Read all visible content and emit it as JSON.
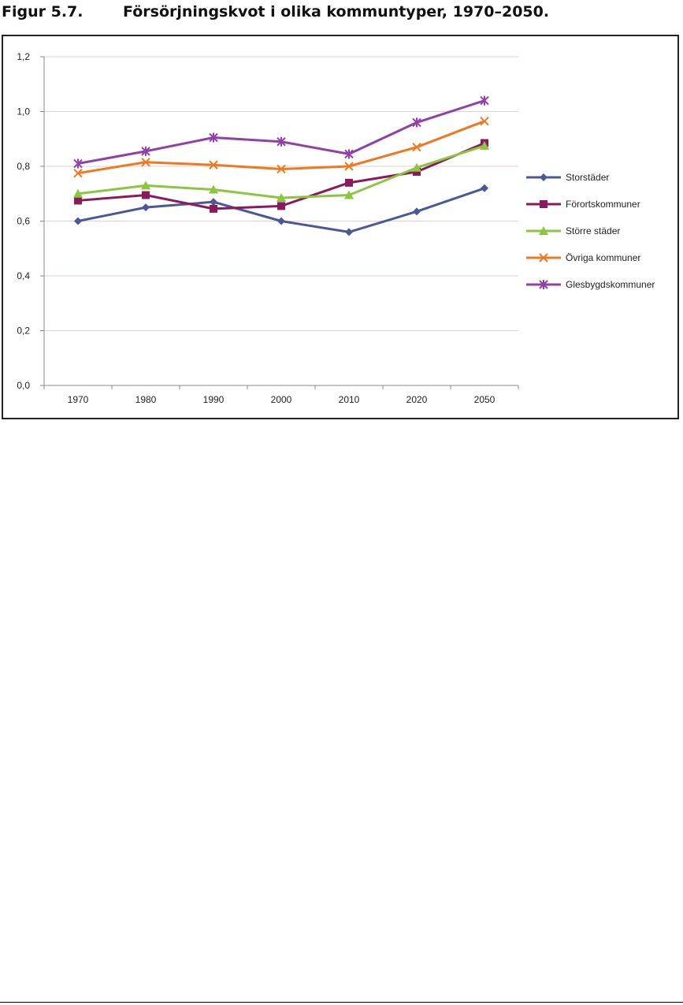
{
  "figure": {
    "number": "Figur 5.7.",
    "title": "Försörjningskvot i olika kommuntyper, 1970–2050."
  },
  "chart_data": {
    "type": "line",
    "title": "Försörjningskvot i olika kommuntyper, 1970–2050.",
    "xlabel": "",
    "ylabel": "",
    "categories": [
      "1970",
      "1980",
      "1990",
      "2000",
      "2010",
      "2020",
      "2050"
    ],
    "ylim": [
      0,
      1.2
    ],
    "y_ticks": [
      "0,0",
      "0,2",
      "0,4",
      "0,6",
      "0,8",
      "1,0",
      "1,2"
    ],
    "grid": true,
    "legend_position": "right",
    "series": [
      {
        "name": "Storstäder",
        "color": "#4A5899",
        "marker": "diamond",
        "values": [
          0.6,
          0.65,
          0.67,
          0.6,
          0.56,
          0.635,
          0.72
        ]
      },
      {
        "name": "Förortskommuner",
        "color": "#8B1A5C",
        "marker": "square",
        "values": [
          0.675,
          0.695,
          0.645,
          0.655,
          0.74,
          0.78,
          0.885
        ]
      },
      {
        "name": "Större städer",
        "color": "#8CC63F",
        "marker": "triangle",
        "values": [
          0.7,
          0.73,
          0.715,
          0.685,
          0.695,
          0.795,
          0.875
        ]
      },
      {
        "name": "Övriga kommuner",
        "color": "#F07820",
        "marker": "x",
        "values": [
          0.775,
          0.815,
          0.805,
          0.79,
          0.8,
          0.87,
          0.965
        ]
      },
      {
        "name": "Glesbygdskommuner",
        "color": "#9040A8",
        "marker": "star",
        "values": [
          0.81,
          0.855,
          0.905,
          0.89,
          0.845,
          0.96,
          1.04
        ]
      }
    ]
  }
}
